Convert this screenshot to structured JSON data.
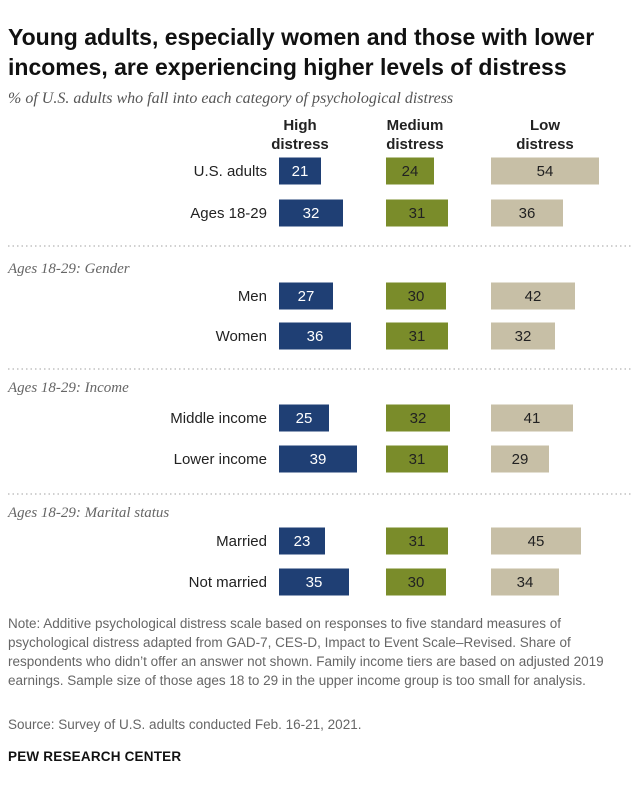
{
  "title": "Young adults, especially women and those with lower incomes, are experiencing higher levels of distress",
  "subtitle": "% of U.S. adults who fall into each category of psychological distress",
  "chart_data": {
    "type": "bar",
    "orientation": "horizontal",
    "series": [
      {
        "name": "High distress",
        "header_line1": "High",
        "header_line2": "distress",
        "color": "#1f3f74",
        "label_color": "#ffffff"
      },
      {
        "name": "Medium distress",
        "header_line1": "Medium",
        "header_line2": "distress",
        "color": "#7a8c2a",
        "label_color": "#222222"
      },
      {
        "name": "Low distress",
        "header_line1": "Low",
        "header_line2": "distress",
        "color": "#c7bfa6",
        "label_color": "#222222"
      }
    ],
    "groups": [
      {
        "label": "",
        "rows": [
          {
            "label": "U.S. adults",
            "values": [
              21,
              24,
              54
            ]
          },
          {
            "label": "Ages 18-29",
            "values": [
              32,
              31,
              36
            ]
          }
        ]
      },
      {
        "label": "Ages 18-29: Gender",
        "rows": [
          {
            "label": "Men",
            "values": [
              27,
              30,
              42
            ]
          },
          {
            "label": "Women",
            "values": [
              36,
              31,
              32
            ]
          }
        ]
      },
      {
        "label": "Ages 18-29: Income",
        "rows": [
          {
            "label": "Middle income",
            "values": [
              25,
              32,
              41
            ]
          },
          {
            "label": "Lower income",
            "values": [
              39,
              31,
              29
            ]
          }
        ]
      },
      {
        "label": "Ages 18-29: Marital status",
        "rows": [
          {
            "label": "Married",
            "values": [
              23,
              31,
              45
            ]
          },
          {
            "label": "Not married",
            "values": [
              35,
              30,
              34
            ]
          }
        ]
      }
    ]
  },
  "note": "Note: Additive psychological distress scale based on responses to five standard measures of psychological distress adapted from GAD-7, CES-D, Impact to Event Scale–Revised. Share of respondents who didn’t offer an answer not shown. Family income tiers are based on adjusted 2019 earnings. Sample size of those ages 18 to 29 in the upper income group is too small for analysis.",
  "source": "Source: Survey of U.S. adults conducted Feb. 16-21, 2021.",
  "brand": "PEW RESEARCH CENTER"
}
